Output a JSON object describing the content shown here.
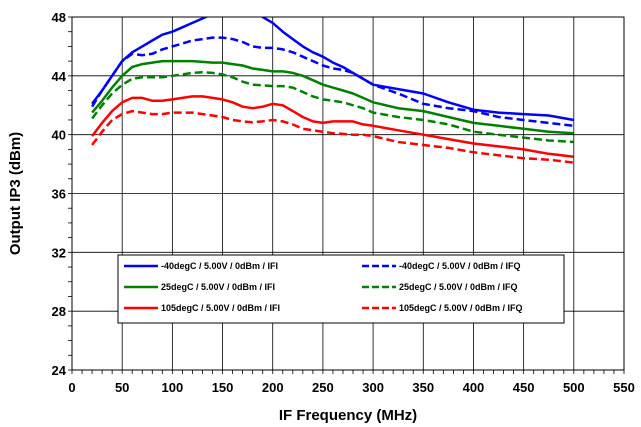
{
  "chart_data": {
    "type": "line",
    "title": "",
    "xlabel": "IF Frequency (MHz)",
    "ylabel": "Output IP3 (dBm)",
    "xlim": [
      0,
      550
    ],
    "ylim": [
      24,
      48
    ],
    "xticks": [
      "0",
      "50",
      "100",
      "150",
      "200",
      "250",
      "300",
      "350",
      "400",
      "450",
      "500",
      "550"
    ],
    "yticks": [
      "24",
      "28",
      "32",
      "36",
      "40",
      "44",
      "48"
    ],
    "grid": true,
    "legend_position": "center",
    "series": [
      {
        "name": "-40degC /  5.00V /  0dBm /  IFI",
        "color": "#0000ff",
        "dash": "solid",
        "x": [
          20,
          30,
          40,
          50,
          60,
          70,
          80,
          90,
          100,
          110,
          120,
          130,
          140,
          150,
          160,
          170,
          180,
          190,
          200,
          210,
          220,
          230,
          240,
          250,
          260,
          270,
          280,
          290,
          300,
          325,
          350,
          375,
          400,
          425,
          450,
          475,
          500
        ],
        "y": [
          42.1,
          43.0,
          44.0,
          45.0,
          45.6,
          46.0,
          46.4,
          46.8,
          47.0,
          47.3,
          47.6,
          47.9,
          48.2,
          48.4,
          48.5,
          48.5,
          48.4,
          48.0,
          47.6,
          47.0,
          46.5,
          46.0,
          45.6,
          45.3,
          44.9,
          44.6,
          44.2,
          43.8,
          43.4,
          43.1,
          42.8,
          42.2,
          41.7,
          41.5,
          41.4,
          41.3,
          41.0
        ]
      },
      {
        "name": "-40degC /  5.00V /  0dBm /  IFQ",
        "color": "#0000ff",
        "dash": "dashed",
        "x": [
          20,
          30,
          40,
          50,
          60,
          70,
          80,
          90,
          100,
          110,
          120,
          130,
          140,
          150,
          160,
          170,
          180,
          190,
          200,
          210,
          220,
          230,
          240,
          250,
          260,
          270,
          280,
          290,
          300,
          325,
          350,
          375,
          400,
          425,
          450,
          475,
          500
        ],
        "y": [
          41.9,
          43.0,
          44.0,
          45.0,
          45.5,
          45.4,
          45.5,
          45.8,
          46.0,
          46.2,
          46.4,
          46.5,
          46.6,
          46.6,
          46.5,
          46.3,
          46.0,
          45.9,
          45.9,
          45.8,
          45.6,
          45.3,
          45.0,
          44.7,
          44.5,
          44.4,
          44.2,
          43.8,
          43.4,
          42.8,
          42.1,
          41.8,
          41.6,
          41.2,
          41.0,
          40.8,
          40.6
        ]
      },
      {
        "name": "25degC /  5.00V /  0dBm /  IFI",
        "color": "#008000",
        "dash": "solid",
        "x": [
          20,
          30,
          40,
          50,
          60,
          70,
          80,
          90,
          100,
          110,
          120,
          130,
          140,
          150,
          160,
          170,
          180,
          190,
          200,
          210,
          220,
          230,
          240,
          250,
          260,
          270,
          280,
          290,
          300,
          325,
          350,
          375,
          400,
          425,
          450,
          475,
          500
        ],
        "y": [
          41.5,
          42.3,
          43.2,
          44.0,
          44.6,
          44.8,
          44.9,
          45.0,
          45.0,
          45.0,
          45.0,
          44.95,
          44.9,
          44.9,
          44.8,
          44.7,
          44.5,
          44.4,
          44.3,
          44.3,
          44.2,
          44.0,
          43.7,
          43.4,
          43.2,
          43.0,
          42.8,
          42.5,
          42.2,
          41.8,
          41.6,
          41.2,
          40.8,
          40.6,
          40.4,
          40.2,
          40.1
        ]
      },
      {
        "name": "25degC /  5.00V /  0dBm /  IFQ",
        "color": "#008000",
        "dash": "dashed",
        "x": [
          20,
          30,
          40,
          50,
          60,
          70,
          80,
          90,
          100,
          110,
          120,
          130,
          140,
          150,
          160,
          170,
          180,
          190,
          200,
          210,
          220,
          230,
          240,
          250,
          260,
          270,
          280,
          290,
          300,
          325,
          350,
          375,
          400,
          425,
          450,
          475,
          500
        ],
        "y": [
          41.1,
          42.0,
          42.8,
          43.4,
          43.8,
          43.9,
          43.9,
          43.9,
          44.0,
          44.1,
          44.2,
          44.25,
          44.2,
          44.1,
          43.9,
          43.6,
          43.4,
          43.35,
          43.3,
          43.3,
          43.2,
          42.9,
          42.6,
          42.4,
          42.3,
          42.2,
          42.0,
          41.8,
          41.5,
          41.2,
          41.0,
          40.7,
          40.2,
          40.0,
          39.8,
          39.6,
          39.5
        ]
      },
      {
        "name": "105degC /  5.00V /  0dBm /  IFI",
        "color": "#ff0000",
        "dash": "solid",
        "x": [
          20,
          30,
          40,
          50,
          60,
          70,
          80,
          90,
          100,
          110,
          120,
          130,
          140,
          150,
          160,
          170,
          180,
          190,
          200,
          210,
          220,
          230,
          240,
          250,
          260,
          270,
          280,
          290,
          300,
          325,
          350,
          375,
          400,
          425,
          450,
          475,
          500
        ],
        "y": [
          39.9,
          40.8,
          41.6,
          42.2,
          42.5,
          42.5,
          42.3,
          42.3,
          42.4,
          42.5,
          42.6,
          42.6,
          42.5,
          42.4,
          42.2,
          41.9,
          41.8,
          41.9,
          42.1,
          42.0,
          41.6,
          41.2,
          40.9,
          40.8,
          40.9,
          40.9,
          40.9,
          40.7,
          40.6,
          40.3,
          40.0,
          39.7,
          39.4,
          39.2,
          39.0,
          38.7,
          38.5
        ]
      },
      {
        "name": "105degC /  5.00V /  0dBm /  IFQ",
        "color": "#ff0000",
        "dash": "dashed",
        "x": [
          20,
          30,
          40,
          50,
          60,
          70,
          80,
          90,
          100,
          110,
          120,
          130,
          140,
          150,
          160,
          170,
          180,
          190,
          200,
          210,
          220,
          230,
          240,
          250,
          260,
          270,
          280,
          290,
          300,
          325,
          350,
          375,
          400,
          425,
          450,
          475,
          500
        ],
        "y": [
          39.3,
          40.2,
          41.0,
          41.4,
          41.6,
          41.5,
          41.4,
          41.4,
          41.5,
          41.5,
          41.5,
          41.4,
          41.3,
          41.2,
          41.0,
          40.9,
          40.85,
          40.9,
          41.0,
          40.9,
          40.7,
          40.4,
          40.3,
          40.2,
          40.1,
          40.05,
          40.0,
          40.0,
          39.9,
          39.5,
          39.3,
          39.1,
          38.8,
          38.6,
          38.4,
          38.3,
          38.1
        ]
      }
    ]
  }
}
